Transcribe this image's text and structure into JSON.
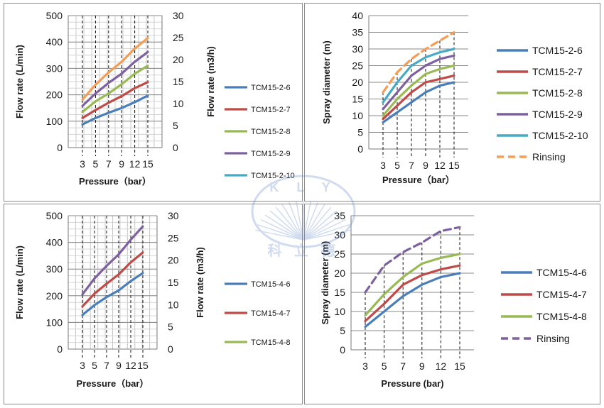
{
  "chart_data": [
    {
      "type": "line",
      "xlabel": "Pressure（bar）",
      "ylabel": "Flow rate (L/min)",
      "y2label": "Flow rate (m3/h)",
      "categories": [
        "3",
        "5",
        "7",
        "9",
        "12",
        "15"
      ],
      "ylim": [
        0,
        500
      ],
      "yticks": [
        "0",
        "100",
        "200",
        "300",
        "400",
        "500"
      ],
      "y2lim": [
        0,
        30
      ],
      "y2ticks": [
        "0",
        "5",
        "10",
        "15",
        "20",
        "25",
        "30"
      ],
      "grid": "vertical-and-horizontal minor lines, dashed drops at categories",
      "legend_position": "right",
      "series": [
        {
          "name": "TCM15-2-6",
          "color": "#4a7ebb",
          "values": [
            88,
            112,
            132,
            150,
            172,
            197
          ]
        },
        {
          "name": "TCM15-2-7",
          "color": "#be4b48",
          "values": [
            112,
            142,
            170,
            195,
            225,
            248
          ]
        },
        {
          "name": "TCM15-2-8",
          "color": "#98b954",
          "values": [
            135,
            175,
            205,
            240,
            280,
            310
          ]
        },
        {
          "name": "TCM15-2-9",
          "color": "#7d60a0",
          "values": [
            158,
            205,
            245,
            280,
            325,
            362
          ]
        },
        {
          "name": "TCM15-2-10",
          "color": "#46aac5",
          "values": [
            182,
            238,
            285,
            325,
            375,
            415
          ]
        }
      ],
      "series_line_colors_override": {
        "TCM15-2-10": "#f59d56"
      }
    },
    {
      "type": "line",
      "xlabel": "Pressure（bar）",
      "ylabel": "Spray diameter (m)",
      "categories": [
        "3",
        "5",
        "7",
        "9",
        "12",
        "15"
      ],
      "ylim": [
        0,
        40
      ],
      "yticks": [
        "0",
        "5",
        "10",
        "15",
        "20",
        "25",
        "30",
        "35",
        "40"
      ],
      "grid": "horizontal lines, dashed drops at categories",
      "legend_position": "right",
      "series": [
        {
          "name": "TCM15-2-6",
          "color": "#4a7ebb",
          "values": [
            8,
            11,
            14,
            17,
            19,
            20
          ]
        },
        {
          "name": "TCM15-2-7",
          "color": "#be4b48",
          "values": [
            9,
            13,
            17,
            20,
            21,
            22
          ]
        },
        {
          "name": "TCM15-2-8",
          "color": "#98b954",
          "values": [
            10,
            15,
            19,
            22.5,
            24,
            25
          ]
        },
        {
          "name": "TCM15-2-9",
          "color": "#7d60a0",
          "values": [
            12,
            17,
            22,
            25,
            27,
            28
          ]
        },
        {
          "name": "TCM15-2-10",
          "color": "#46aac5",
          "values": [
            14,
            20,
            25,
            27.5,
            29,
            30
          ]
        },
        {
          "name": "Rinsing",
          "color": "#f59d56",
          "dashed": true,
          "values": [
            17,
            23,
            27,
            30,
            32.5,
            35
          ]
        }
      ]
    },
    {
      "type": "line",
      "xlabel": "Pressure（bar）",
      "ylabel": "Flow rate (L/min)",
      "y2label": "Flow rate (m3/h)",
      "categories": [
        "3",
        "5",
        "7",
        "9",
        "12",
        "15"
      ],
      "ylim": [
        0,
        500
      ],
      "yticks": [
        "0",
        "100",
        "200",
        "300",
        "400",
        "500"
      ],
      "y2lim": [
        0,
        30
      ],
      "y2ticks": [
        "0",
        "5",
        "10",
        "15",
        "20",
        "25",
        "30"
      ],
      "grid": "vertical-and-horizontal minor lines, dashed drops at categories",
      "legend_position": "right",
      "series": [
        {
          "name": "TCM15-4-6",
          "color": "#4a7ebb",
          "values": [
            128,
            165,
            195,
            220,
            255,
            285
          ]
        },
        {
          "name": "TCM15-4-7",
          "color": "#be4b48",
          "values": [
            160,
            208,
            245,
            280,
            325,
            362
          ]
        },
        {
          "name": "TCM15-4-8",
          "color": "#7d60a0",
          "values": [
            205,
            265,
            312,
            355,
            410,
            460
          ]
        }
      ],
      "legend_colors": [
        "#4a7ebb",
        "#be4b48",
        "#98b954"
      ]
    },
    {
      "type": "line",
      "xlabel": "Pressure (bar)",
      "ylabel": "Spray diameter (m)",
      "categories": [
        "3",
        "5",
        "7",
        "9",
        "12",
        "15"
      ],
      "ylim": [
        0,
        35
      ],
      "yticks": [
        "0",
        "5",
        "10",
        "15",
        "20",
        "25",
        "30",
        "35"
      ],
      "grid": "horizontal lines, dashed drops at categories",
      "legend_position": "right",
      "series": [
        {
          "name": "TCM15-4-6",
          "color": "#4a7ebb",
          "values": [
            6,
            10,
            14,
            17,
            19,
            20
          ]
        },
        {
          "name": "TCM15-4-7",
          "color": "#be4b48",
          "values": [
            7.5,
            12,
            17,
            19.5,
            21,
            22
          ]
        },
        {
          "name": "TCM15-4-8",
          "color": "#98b954",
          "values": [
            9,
            14.5,
            19,
            22.5,
            24,
            25
          ]
        },
        {
          "name": "Rinsing",
          "color": "#7d60a0",
          "dashed": true,
          "values": [
            15,
            22,
            25.5,
            28,
            31,
            32
          ]
        }
      ]
    }
  ],
  "watermark": {
    "text": "科 立 德",
    "letters": "K L Y",
    "color": "#6b8ccc"
  }
}
